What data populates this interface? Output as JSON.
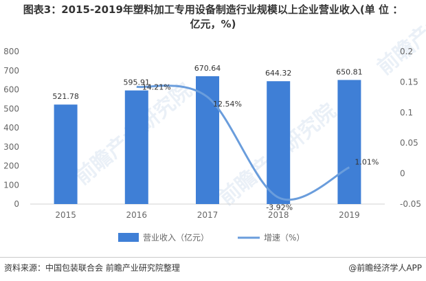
{
  "title_line1": "图表3：2015-2019年塑料加工专用设备制造行业规模以上企业营业收入(单 位 ：",
  "title_line2": "亿元，%)",
  "footer": {
    "source": "资料来源：中国包装联合会 前瞻产业研究院整理",
    "brand": "@前瞻经济学人APP"
  },
  "watermark": "前瞻产业研究院",
  "colors": {
    "bar": "#3f7fd6",
    "line": "#6a9ddc",
    "axis_text": "#666666"
  },
  "chart_data": {
    "type": "bar+line",
    "categories": [
      "2015",
      "2016",
      "2017",
      "2018",
      "2019"
    ],
    "series": [
      {
        "name": "营业收入（亿元）",
        "type": "bar",
        "axis": "left",
        "values": [
          521.78,
          595.91,
          670.64,
          644.32,
          650.81
        ],
        "labels": [
          "521.78",
          "595.91",
          "670.64",
          "644.32",
          "650.81"
        ]
      },
      {
        "name": "增速（%）",
        "type": "line",
        "axis": "right",
        "values": [
          null,
          0.1421,
          0.1254,
          -0.0392,
          0.0101
        ],
        "labels": [
          "",
          "14.21%",
          "12.54%",
          "-3.92%",
          "1.01%"
        ]
      }
    ],
    "left_axis": {
      "min": 0,
      "max": 800,
      "ticks": [
        0,
        100,
        200,
        300,
        400,
        500,
        600,
        700,
        800
      ]
    },
    "right_axis": {
      "min": -0.05,
      "max": 0.2,
      "ticks": [
        -0.05,
        0,
        0.05,
        0.1,
        0.15,
        0.2
      ],
      "tick_labels": [
        "-0.05",
        "0",
        "0.05",
        "0.1",
        "0.15",
        "0.2"
      ]
    },
    "legend": {
      "position": "bottom"
    },
    "grid": false
  }
}
